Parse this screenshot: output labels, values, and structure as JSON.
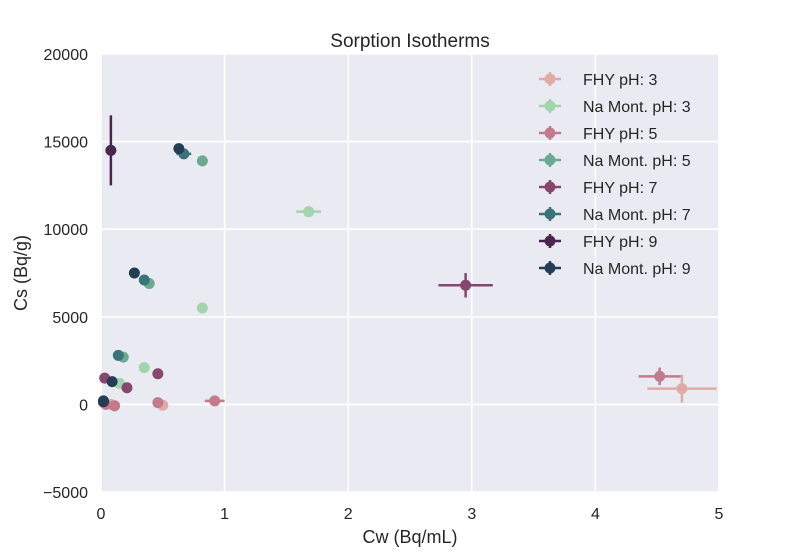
{
  "chart_data": {
    "type": "scatter",
    "title": "Sorption Isotherms",
    "xlabel": "Cw (Bq/mL)",
    "ylabel": "Cs (Bq/g)",
    "xlim": [
      0,
      5
    ],
    "ylim": [
      -5000,
      20000
    ],
    "xticks": [
      0,
      1,
      2,
      3,
      4,
      5
    ],
    "xtick_labels": [
      "0",
      "1",
      "2",
      "3",
      "4",
      "5"
    ],
    "yticks": [
      -5000,
      0,
      5000,
      10000,
      15000,
      20000
    ],
    "ytick_labels": [
      "−5000",
      "0",
      "5000",
      "10000",
      "15000",
      "20000"
    ],
    "grid": true,
    "legend_position": "top-right",
    "series": [
      {
        "name": "FHY pH: 3",
        "color": "#e0aaa8",
        "points": [
          {
            "x": 0.02,
            "y": 100
          },
          {
            "x": 0.08,
            "y": 0
          },
          {
            "x": 0.5,
            "y": -50
          },
          {
            "x": 4.7,
            "y": 900,
            "xerr": 0.28,
            "yerr": 800
          }
        ]
      },
      {
        "name": "Na Mont. pH: 3",
        "color": "#a3d4ad",
        "points": [
          {
            "x": 0.15,
            "y": 1200
          },
          {
            "x": 0.35,
            "y": 2100
          },
          {
            "x": 0.82,
            "y": 5500
          },
          {
            "x": 1.68,
            "y": 11000,
            "xerr": 0.1,
            "yerr": 200
          }
        ]
      },
      {
        "name": "FHY pH: 5",
        "color": "#c27a8d",
        "points": [
          {
            "x": 0.04,
            "y": 0
          },
          {
            "x": 0.11,
            "y": -80
          },
          {
            "x": 0.46,
            "y": 100
          },
          {
            "x": 0.92,
            "y": 200,
            "xerr": 0.08,
            "yerr": 100
          },
          {
            "x": 4.52,
            "y": 1600,
            "xerr": 0.17,
            "yerr": 500
          }
        ]
      },
      {
        "name": "Na Mont. pH: 5",
        "color": "#6aaa90",
        "points": [
          {
            "x": 0.18,
            "y": 2700
          },
          {
            "x": 0.39,
            "y": 6900
          },
          {
            "x": 0.82,
            "y": 13900
          }
        ]
      },
      {
        "name": "FHY pH: 7",
        "color": "#86476f",
        "points": [
          {
            "x": 0.03,
            "y": 1500
          },
          {
            "x": 0.21,
            "y": 950
          },
          {
            "x": 0.46,
            "y": 1750
          },
          {
            "x": 2.95,
            "y": 6800,
            "xerr": 0.22,
            "yerr": 700
          }
        ]
      },
      {
        "name": "Na Mont. pH: 7",
        "color": "#3a7478",
        "points": [
          {
            "x": 0.14,
            "y": 2800
          },
          {
            "x": 0.35,
            "y": 7100
          },
          {
            "x": 0.67,
            "y": 14300,
            "xerr": 0.06,
            "yerr": 150
          }
        ]
      },
      {
        "name": "FHY pH: 9",
        "color": "#4a2550",
        "points": [
          {
            "x": 0.08,
            "y": 14500,
            "yerr": 2000
          },
          {
            "x": 0.02,
            "y": 150
          }
        ]
      },
      {
        "name": "Na Mont. pH: 9",
        "color": "#233e54",
        "points": [
          {
            "x": 0.02,
            "y": 200
          },
          {
            "x": 0.09,
            "y": 1300
          },
          {
            "x": 0.27,
            "y": 7500
          },
          {
            "x": 0.63,
            "y": 14600
          }
        ]
      }
    ]
  }
}
